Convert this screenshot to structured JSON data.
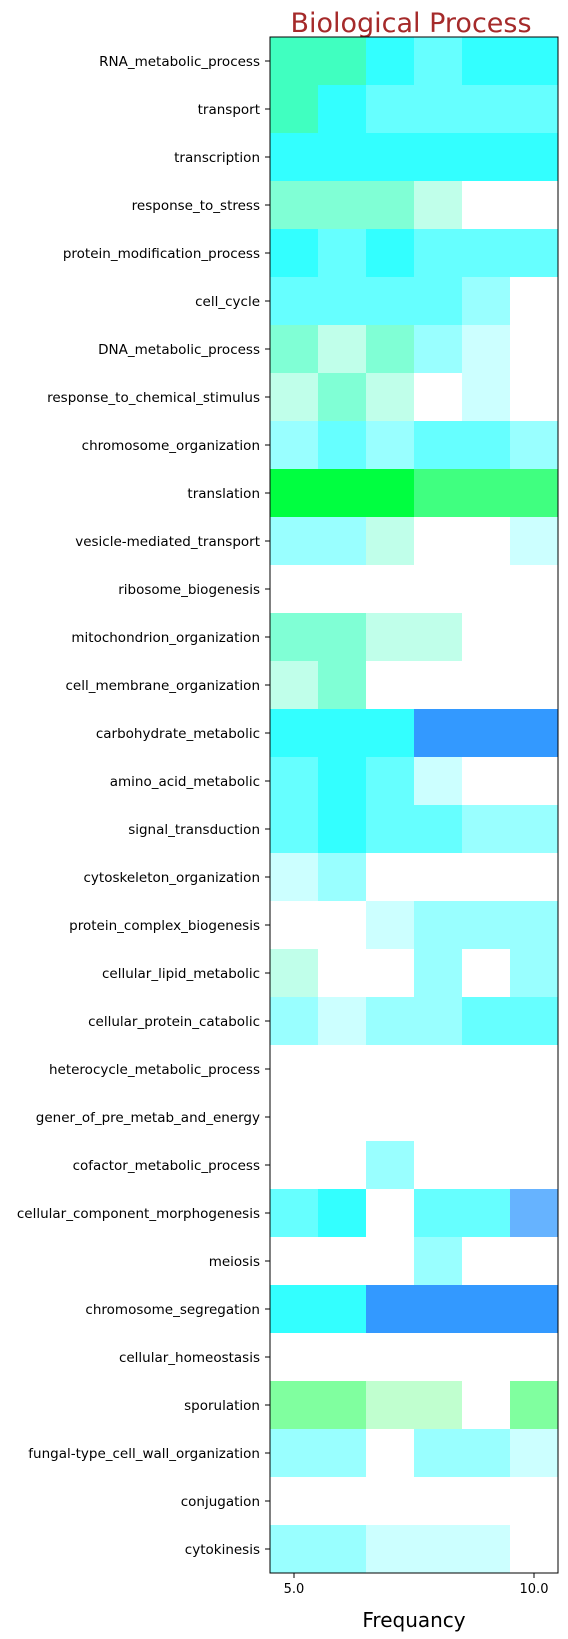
{
  "chart_data": {
    "type": "heatmap",
    "title": "Biological Process",
    "xlabel": "Frequancy",
    "ylabel": "",
    "x_tick_labels": [
      "5.0",
      "10.0"
    ],
    "x_tick_positions": [
      5.0,
      10.0
    ],
    "x_columns": [
      5,
      6,
      7,
      8,
      9,
      10
    ],
    "categories": [
      "RNA_metabolic_process",
      "transport",
      "transcription",
      "response_to_stress",
      "protein_modification_process",
      "cell_cycle",
      "DNA_metabolic_process",
      "response_to_chemical_stimulus",
      "chromosome_organization",
      "translation",
      "vesicle-mediated_transport",
      "ribosome_biogenesis",
      "mitochondrion_organization",
      "cell_membrane_organization",
      "carbohydrate_metabolic",
      "amino_acid_metabolic",
      "signal_transduction",
      "cytoskeleton_organization",
      "protein_complex_biogenesis",
      "cellular_lipid_metabolic",
      "cellular_protein_catabolic",
      "heterocycle_metabolic_process",
      "gener_of_pre_metab_and_energy",
      "cofactor_metabolic_process",
      "cellular_component_morphogenesis",
      "meiosis",
      "chromosome_segregation",
      "cellular_homeostasis",
      "sporulation",
      "fungal-type_cell_wall_organization",
      "conjugation",
      "cytokinesis"
    ],
    "cell_colors": [
      [
        "#40ffc0",
        "#40ffc0",
        "#33ffff",
        "#66ffff",
        "#33ffff",
        "#33ffff"
      ],
      [
        "#40ffc0",
        "#33ffff",
        "#66ffff",
        "#66ffff",
        "#66ffff",
        "#66ffff"
      ],
      [
        "#33ffff",
        "#33ffff",
        "#33ffff",
        "#33ffff",
        "#33ffff",
        "#33ffff"
      ],
      [
        "#80ffd5",
        "#80ffd5",
        "#80ffd5",
        "#c0ffea",
        "#ffffff",
        "#ffffff"
      ],
      [
        "#33ffff",
        "#66ffff",
        "#33ffff",
        "#66ffff",
        "#66ffff",
        "#66ffff"
      ],
      [
        "#66ffff",
        "#66ffff",
        "#66ffff",
        "#66ffff",
        "#99ffff",
        "#ffffff"
      ],
      [
        "#80ffd5",
        "#c0ffea",
        "#80ffd5",
        "#99ffff",
        "#ccffff",
        "#ffffff"
      ],
      [
        "#c0ffea",
        "#80ffd5",
        "#c0ffea",
        "#ffffff",
        "#ccffff",
        "#ffffff"
      ],
      [
        "#99ffff",
        "#66ffff",
        "#99ffff",
        "#66ffff",
        "#66ffff",
        "#99ffff"
      ],
      [
        "#00ff40",
        "#00ff40",
        "#00ff40",
        "#40ff80",
        "#40ff80",
        "#40ff80"
      ],
      [
        "#99ffff",
        "#99ffff",
        "#c0ffea",
        "#ffffff",
        "#ffffff",
        "#ccffff"
      ],
      [
        "#ffffff",
        "#ffffff",
        "#ffffff",
        "#ffffff",
        "#ffffff",
        "#ffffff"
      ],
      [
        "#80ffd5",
        "#80ffd5",
        "#c0ffea",
        "#c0ffea",
        "#ffffff",
        "#ffffff"
      ],
      [
        "#c0ffea",
        "#80ffd5",
        "#ffffff",
        "#ffffff",
        "#ffffff",
        "#ffffff"
      ],
      [
        "#33ffff",
        "#33ffff",
        "#33ffff",
        "#3399ff",
        "#3399ff",
        "#3399ff"
      ],
      [
        "#66ffff",
        "#33ffff",
        "#66ffff",
        "#ccffff",
        "#ffffff",
        "#ffffff"
      ],
      [
        "#66ffff",
        "#33ffff",
        "#66ffff",
        "#66ffff",
        "#99ffff",
        "#99ffff"
      ],
      [
        "#ccffff",
        "#99ffff",
        "#ffffff",
        "#ffffff",
        "#ffffff",
        "#ffffff"
      ],
      [
        "#ffffff",
        "#ffffff",
        "#ccffff",
        "#99ffff",
        "#99ffff",
        "#99ffff"
      ],
      [
        "#c0ffea",
        "#ffffff",
        "#ffffff",
        "#99ffff",
        "#ffffff",
        "#99ffff"
      ],
      [
        "#99ffff",
        "#ccffff",
        "#99ffff",
        "#99ffff",
        "#66ffff",
        "#66ffff"
      ],
      [
        "#ffffff",
        "#ffffff",
        "#ffffff",
        "#ffffff",
        "#ffffff",
        "#ffffff"
      ],
      [
        "#ffffff",
        "#ffffff",
        "#ffffff",
        "#ffffff",
        "#ffffff",
        "#ffffff"
      ],
      [
        "#ffffff",
        "#ffffff",
        "#99ffff",
        "#ffffff",
        "#ffffff",
        "#ffffff"
      ],
      [
        "#66ffff",
        "#33ffff",
        "#ffffff",
        "#66ffff",
        "#66ffff",
        "#66b3ff"
      ],
      [
        "#ffffff",
        "#ffffff",
        "#ffffff",
        "#99ffff",
        "#ffffff",
        "#ffffff"
      ],
      [
        "#33ffff",
        "#33ffff",
        "#3399ff",
        "#3399ff",
        "#3399ff",
        "#3399ff"
      ],
      [
        "#ffffff",
        "#ffffff",
        "#ffffff",
        "#ffffff",
        "#ffffff",
        "#ffffff"
      ],
      [
        "#80ff9f",
        "#80ff9f",
        "#c0ffcf",
        "#c0ffcf",
        "#ffffff",
        "#80ff9f"
      ],
      [
        "#99ffff",
        "#99ffff",
        "#ffffff",
        "#99ffff",
        "#99ffff",
        "#ccffff"
      ],
      [
        "#ffffff",
        "#ffffff",
        "#ffffff",
        "#ffffff",
        "#ffffff",
        "#ffffff"
      ],
      [
        "#99ffff",
        "#99ffff",
        "#ccffff",
        "#ccffff",
        "#ccffff",
        "#ffffff"
      ]
    ],
    "grid": false,
    "legend": "none"
  }
}
